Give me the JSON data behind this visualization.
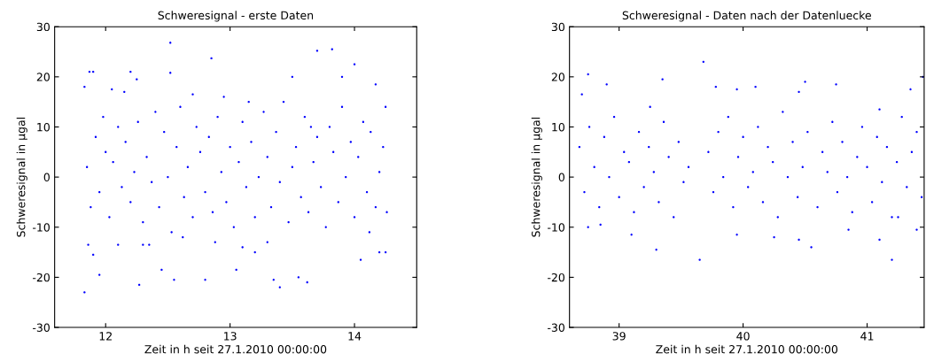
{
  "chart_data": [
    {
      "type": "scatter",
      "title": "Schweresignal - erste Daten",
      "xlabel": "Zeit in h seit 27.1.2010 00:00:00",
      "ylabel": "Schweresignal in µgal",
      "xlim": [
        11.59,
        14.5
      ],
      "ylim": [
        -30,
        30
      ],
      "xticks": [
        12,
        13,
        14
      ],
      "yticks": [
        -30,
        -20,
        -10,
        0,
        10,
        20,
        30
      ],
      "marker": "circle",
      "series": [
        {
          "color": "#0000ff",
          "x": [
            11.83,
            11.87,
            11.9,
            11.83,
            11.86,
            11.9,
            11.95,
            12.05,
            12.1,
            12.2,
            12.25,
            12.27,
            12.3,
            12.35,
            12.45,
            12.55,
            12.52,
            12.52,
            12.7,
            12.85,
            12.8,
            12.95,
            13.05,
            13.1,
            13.2,
            13.3,
            13.35,
            13.4,
            13.5,
            13.55,
            13.62,
            13.7,
            13.82,
            13.9,
            14.0,
            14.05,
            14.2,
            14.25,
            14.17,
            14.25,
            11.85,
            11.88,
            11.92,
            11.95,
            11.98,
            12.0,
            12.03,
            12.06,
            12.1,
            12.13,
            12.16,
            12.2,
            12.23,
            12.26,
            12.3,
            12.33,
            12.37,
            12.4,
            12.43,
            12.47,
            12.5,
            12.53,
            12.57,
            12.6,
            12.63,
            12.66,
            12.7,
            12.73,
            12.76,
            12.8,
            12.83,
            12.86,
            12.9,
            12.93,
            12.97,
            13.0,
            13.03,
            13.07,
            13.1,
            13.13,
            13.17,
            13.2,
            13.23,
            13.27,
            13.3,
            13.33,
            13.37,
            13.4,
            13.43,
            13.47,
            13.5,
            13.53,
            13.57,
            13.6,
            13.63,
            13.67,
            13.7,
            13.73,
            13.77,
            13.8,
            13.83,
            13.87,
            13.9,
            13.93,
            13.97,
            14.0,
            14.03,
            14.07,
            14.1,
            14.13,
            14.17,
            14.2,
            14.23,
            14.26,
            12.15,
            12.62,
            13.15,
            13.65,
            14.12,
            12.88
          ],
          "values": [
            -23,
            21,
            21,
            18,
            -13.5,
            -15.5,
            -19.5,
            17.5,
            -13.5,
            21,
            19.5,
            -21.5,
            -13.5,
            -13.5,
            -18.5,
            -20.5,
            26.8,
            20.8,
            16.5,
            23.7,
            -20.5,
            16,
            -18.5,
            -14,
            -15,
            -13,
            -20.5,
            -22,
            20,
            -20,
            -21,
            25.2,
            25.5,
            20,
            22.5,
            -16.5,
            -15,
            -15,
            18.5,
            14,
            2,
            -6,
            8,
            -3,
            12,
            5,
            -8,
            3,
            10,
            -2,
            7,
            -5,
            1,
            11,
            -9,
            4,
            -1,
            13,
            -6,
            9,
            0,
            -11,
            6,
            14,
            -4,
            2,
            -8,
            10,
            5,
            -3,
            8,
            -7,
            12,
            1,
            -5,
            6,
            -10,
            3,
            11,
            -2,
            7,
            -8,
            0,
            13,
            4,
            -6,
            9,
            -1,
            15,
            -9,
            2,
            6,
            -4,
            12,
            -7,
            3,
            8,
            -2,
            -10,
            10,
            5,
            -5,
            14,
            0,
            7,
            -8,
            4,
            11,
            -3,
            9,
            -6,
            1,
            6,
            -7,
            17,
            -12,
            15,
            10,
            -11,
            -13
          ]
        }
      ]
    },
    {
      "type": "scatter",
      "title": "Schweresignal - Daten nach der Datenluecke",
      "xlabel": "Zeit in h seit 27.1.2010 00:00:00",
      "ylabel": "Schweresignal in µgal",
      "xlim": [
        38.6,
        41.46
      ],
      "ylim": [
        -30,
        30
      ],
      "xticks": [
        39,
        40,
        41
      ],
      "yticks": [
        -30,
        -20,
        -10,
        0,
        10,
        20,
        30
      ],
      "marker": "circle",
      "series": [
        {
          "color": "#0000ff",
          "x": [
            39.68,
            38.75,
            38.7,
            38.9,
            39.35,
            39.25,
            39.78,
            39.95,
            40.1,
            40.45,
            40.5,
            40.75,
            41.1,
            41.35,
            41.45,
            39.65,
            39.3,
            40.55,
            40.45,
            39.95,
            41.2,
            41.1,
            41.4,
            38.85,
            38.75,
            39.1,
            40.25,
            40.85,
            41.25,
            38.68,
            38.72,
            38.76,
            38.8,
            38.84,
            38.88,
            38.92,
            38.96,
            39.0,
            39.04,
            39.08,
            39.12,
            39.16,
            39.2,
            39.24,
            39.28,
            39.32,
            39.36,
            39.4,
            39.44,
            39.48,
            39.52,
            39.56,
            39.72,
            39.76,
            39.8,
            39.84,
            39.88,
            39.92,
            39.96,
            40.0,
            40.04,
            40.08,
            40.12,
            40.16,
            40.2,
            40.24,
            40.28,
            40.32,
            40.36,
            40.4,
            40.44,
            40.48,
            40.52,
            40.6,
            40.64,
            40.68,
            40.72,
            40.76,
            40.8,
            40.84,
            40.88,
            40.92,
            40.96,
            41.0,
            41.04,
            41.08,
            41.12,
            41.16,
            41.2,
            41.24,
            41.28,
            41.32,
            41.36,
            41.4,
            41.44
          ],
          "values": [
            23,
            20.5,
            16.5,
            18.5,
            19.5,
            14,
            18,
            17.5,
            18,
            17,
            19,
            18.5,
            13.5,
            17.5,
            20,
            -16.5,
            -14.5,
            -14,
            -12.5,
            -11.5,
            -16.5,
            -12.5,
            -10.5,
            -9.5,
            -10,
            -11.5,
            -12,
            -10.5,
            -8,
            6,
            -3,
            10,
            2,
            -6,
            8,
            0,
            12,
            -4,
            5,
            3,
            -7,
            9,
            -2,
            6,
            1,
            -5,
            11,
            4,
            -8,
            7,
            -1,
            2,
            5,
            -3,
            9,
            0,
            12,
            -6,
            4,
            8,
            -2,
            1,
            10,
            -5,
            6,
            3,
            -8,
            13,
            0,
            7,
            -4,
            2,
            9,
            -6,
            5,
            1,
            11,
            -3,
            7,
            0,
            -7,
            4,
            10,
            2,
            -5,
            8,
            -1,
            6,
            -8,
            3,
            12,
            -2,
            5,
            9,
            -4
          ]
        }
      ]
    }
  ]
}
